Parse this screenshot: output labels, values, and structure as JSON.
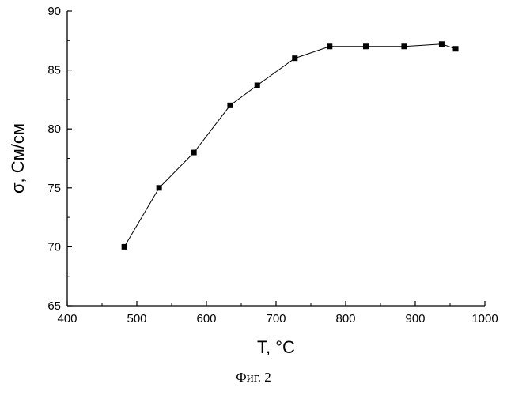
{
  "chart_data": {
    "type": "line",
    "xlabel": "T, °C",
    "ylabel": "σ, См/см",
    "xlim": [
      400,
      1000
    ],
    "ylim": [
      65,
      90
    ],
    "xticks": [
      400,
      500,
      600,
      700,
      800,
      900,
      1000
    ],
    "yticks": [
      65,
      70,
      75,
      80,
      85,
      90
    ],
    "grid": false,
    "marker": "square",
    "line_color": "#000000",
    "marker_color": "#000000",
    "series": [
      {
        "x": [
          482,
          532,
          582,
          634,
          673,
          727,
          777,
          829,
          884,
          938,
          958
        ],
        "y": [
          70.0,
          75.0,
          78.0,
          82.0,
          83.7,
          86.0,
          87.0,
          87.0,
          87.0,
          87.2,
          86.8
        ]
      }
    ]
  },
  "caption": "Фиг. 2"
}
